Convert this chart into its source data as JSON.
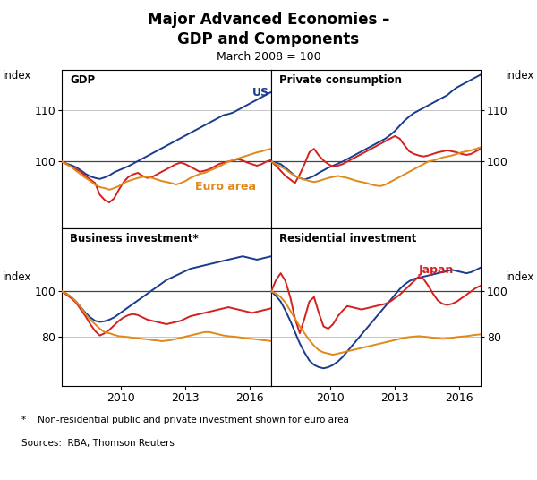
{
  "title": "Major Advanced Economies –\nGDP and Components",
  "subtitle": "March 2008 = 100",
  "colors": {
    "US": "#1a3c8f",
    "Japan": "#d42020",
    "Euro": "#e08818"
  },
  "panels": [
    {
      "title": "GDP",
      "ylim": [
        87,
        118
      ],
      "yticks": [
        100,
        110
      ],
      "US": [
        100.0,
        99.6,
        99.3,
        98.9,
        98.3,
        97.6,
        97.1,
        96.8,
        96.6,
        96.9,
        97.3,
        97.9,
        98.3,
        98.7,
        99.1,
        99.6,
        100.1,
        100.6,
        101.1,
        101.6,
        102.1,
        102.6,
        103.1,
        103.6,
        104.1,
        104.6,
        105.1,
        105.6,
        106.1,
        106.6,
        107.1,
        107.6,
        108.1,
        108.6,
        109.1,
        109.3,
        109.6,
        110.1,
        110.6,
        111.1,
        111.6,
        112.1,
        112.6,
        113.1,
        113.6
      ],
      "Japan": [
        100.0,
        99.5,
        99.0,
        98.5,
        98.0,
        97.2,
        96.5,
        95.8,
        93.5,
        92.5,
        92.0,
        92.8,
        94.5,
        96.0,
        97.0,
        97.5,
        97.8,
        97.2,
        96.8,
        97.0,
        97.5,
        98.0,
        98.5,
        99.0,
        99.5,
        99.8,
        99.5,
        99.0,
        98.5,
        98.0,
        98.2,
        98.5,
        99.0,
        99.5,
        99.8,
        100.0,
        100.2,
        100.5,
        100.2,
        99.8,
        99.5,
        99.2,
        99.5,
        100.0,
        100.3
      ],
      "Euro": [
        100.0,
        99.5,
        99.0,
        98.2,
        97.5,
        96.8,
        96.2,
        95.5,
        95.0,
        94.8,
        94.5,
        94.8,
        95.2,
        95.8,
        96.2,
        96.5,
        96.8,
        97.0,
        97.0,
        96.8,
        96.5,
        96.2,
        96.0,
        95.8,
        95.5,
        95.8,
        96.2,
        96.8,
        97.2,
        97.6,
        97.8,
        98.2,
        98.6,
        99.0,
        99.5,
        100.0,
        100.3,
        100.6,
        100.9,
        101.2,
        101.5,
        101.8,
        102.0,
        102.3,
        102.5
      ]
    },
    {
      "title": "Private consumption",
      "ylim": [
        87,
        118
      ],
      "yticks": [
        100,
        110
      ],
      "US": [
        100.0,
        99.8,
        99.5,
        98.8,
        98.0,
        97.2,
        96.8,
        96.5,
        96.8,
        97.2,
        97.8,
        98.3,
        98.8,
        99.2,
        99.6,
        100.0,
        100.5,
        101.0,
        101.5,
        102.0,
        102.5,
        103.0,
        103.5,
        104.0,
        104.5,
        105.2,
        106.0,
        107.0,
        108.0,
        108.8,
        109.5,
        110.0,
        110.5,
        111.0,
        111.5,
        112.0,
        112.5,
        113.0,
        113.8,
        114.5,
        115.0,
        115.5,
        116.0,
        116.5,
        117.0
      ],
      "Japan": [
        100.0,
        99.2,
        98.2,
        97.2,
        96.5,
        95.8,
        97.5,
        99.5,
        101.8,
        102.5,
        101.2,
        100.2,
        99.5,
        99.0,
        99.2,
        99.5,
        100.0,
        100.5,
        101.0,
        101.5,
        102.0,
        102.5,
        103.0,
        103.5,
        104.0,
        104.5,
        105.0,
        104.5,
        103.2,
        102.0,
        101.5,
        101.2,
        101.0,
        101.2,
        101.5,
        101.8,
        102.0,
        102.2,
        102.0,
        101.8,
        101.5,
        101.3,
        101.5,
        102.0,
        102.5
      ],
      "Euro": [
        100.0,
        99.5,
        99.0,
        98.5,
        97.8,
        97.2,
        96.8,
        96.5,
        96.2,
        96.0,
        96.2,
        96.5,
        96.8,
        97.0,
        97.2,
        97.0,
        96.8,
        96.5,
        96.2,
        96.0,
        95.8,
        95.5,
        95.3,
        95.2,
        95.5,
        96.0,
        96.5,
        97.0,
        97.5,
        98.0,
        98.5,
        99.0,
        99.5,
        100.0,
        100.2,
        100.5,
        100.8,
        101.0,
        101.2,
        101.5,
        101.8,
        102.0,
        102.2,
        102.5,
        102.8
      ]
    },
    {
      "title": "Business investment*",
      "ylim": [
        58,
        128
      ],
      "yticks": [
        80,
        100
      ],
      "US": [
        100.0,
        99.0,
        97.5,
        95.5,
        93.0,
        90.5,
        88.5,
        87.0,
        86.5,
        86.8,
        87.5,
        88.5,
        90.0,
        91.5,
        93.0,
        94.5,
        96.0,
        97.5,
        99.0,
        100.5,
        102.0,
        103.5,
        105.0,
        106.0,
        107.0,
        108.0,
        109.0,
        110.0,
        110.5,
        111.0,
        111.5,
        112.0,
        112.5,
        113.0,
        113.5,
        114.0,
        114.5,
        115.0,
        115.5,
        115.0,
        114.5,
        114.0,
        114.5,
        115.0,
        115.5
      ],
      "Japan": [
        100.0,
        98.5,
        97.0,
        95.0,
        92.0,
        89.0,
        85.5,
        82.5,
        80.5,
        81.5,
        83.0,
        85.0,
        87.0,
        88.5,
        89.5,
        90.0,
        89.5,
        88.5,
        87.5,
        87.0,
        86.5,
        86.0,
        85.5,
        86.0,
        86.5,
        87.0,
        88.0,
        89.0,
        89.5,
        90.0,
        90.5,
        91.0,
        91.5,
        92.0,
        92.5,
        93.0,
        92.5,
        92.0,
        91.5,
        91.0,
        90.5,
        91.0,
        91.5,
        92.0,
        92.5
      ],
      "Euro": [
        100.0,
        99.0,
        97.5,
        95.5,
        93.0,
        90.0,
        87.5,
        85.5,
        83.5,
        82.0,
        81.5,
        80.8,
        80.2,
        80.0,
        79.8,
        79.5,
        79.3,
        79.0,
        78.8,
        78.5,
        78.3,
        78.0,
        78.2,
        78.5,
        79.0,
        79.5,
        80.0,
        80.5,
        81.0,
        81.5,
        82.0,
        82.0,
        81.5,
        81.0,
        80.5,
        80.2,
        80.0,
        79.8,
        79.5,
        79.2,
        79.0,
        78.8,
        78.5,
        78.3,
        78.0
      ]
    },
    {
      "title": "Residential investment",
      "ylim": [
        58,
        128
      ],
      "yticks": [
        80,
        100
      ],
      "US": [
        100.0,
        98.0,
        95.5,
        91.5,
        87.0,
        82.0,
        77.0,
        73.0,
        69.5,
        67.5,
        66.5,
        66.0,
        66.5,
        67.5,
        69.0,
        71.0,
        73.5,
        76.0,
        78.5,
        81.0,
        83.5,
        86.0,
        88.5,
        91.0,
        93.5,
        96.0,
        98.5,
        101.0,
        103.0,
        104.5,
        105.5,
        106.0,
        106.5,
        107.0,
        107.5,
        108.0,
        108.5,
        109.0,
        109.5,
        109.0,
        108.5,
        108.0,
        108.5,
        109.5,
        110.5
      ],
      "Japan": [
        100.0,
        105.0,
        108.0,
        104.5,
        97.5,
        88.0,
        81.5,
        88.0,
        95.5,
        97.5,
        90.5,
        84.5,
        83.5,
        85.5,
        89.0,
        91.5,
        93.5,
        93.0,
        92.5,
        92.0,
        92.5,
        93.0,
        93.5,
        94.0,
        94.5,
        95.5,
        97.0,
        98.5,
        100.5,
        102.5,
        104.5,
        106.5,
        105.5,
        102.5,
        99.0,
        96.0,
        94.5,
        94.0,
        94.5,
        95.5,
        97.0,
        98.5,
        100.0,
        101.5,
        102.5
      ],
      "Euro": [
        100.0,
        99.0,
        97.5,
        95.0,
        91.5,
        88.0,
        84.5,
        81.5,
        78.5,
        76.0,
        74.0,
        73.0,
        72.5,
        72.0,
        72.5,
        73.0,
        73.5,
        74.0,
        74.5,
        75.0,
        75.5,
        76.0,
        76.5,
        77.0,
        77.5,
        78.0,
        78.5,
        79.0,
        79.5,
        79.8,
        80.0,
        80.2,
        80.0,
        79.8,
        79.5,
        79.3,
        79.0,
        79.2,
        79.5,
        79.8,
        80.0,
        80.2,
        80.5,
        80.8,
        81.0
      ]
    }
  ],
  "footnote1": "*    Non-residential public and private investment shown for euro area",
  "footnote2": "Sources:  RBA; Thomson Reuters",
  "n_points": 45,
  "start_year": 2007.25,
  "end_year": 2017.0,
  "xticks": [
    2010,
    2013,
    2016
  ],
  "xmax": 2017.0
}
